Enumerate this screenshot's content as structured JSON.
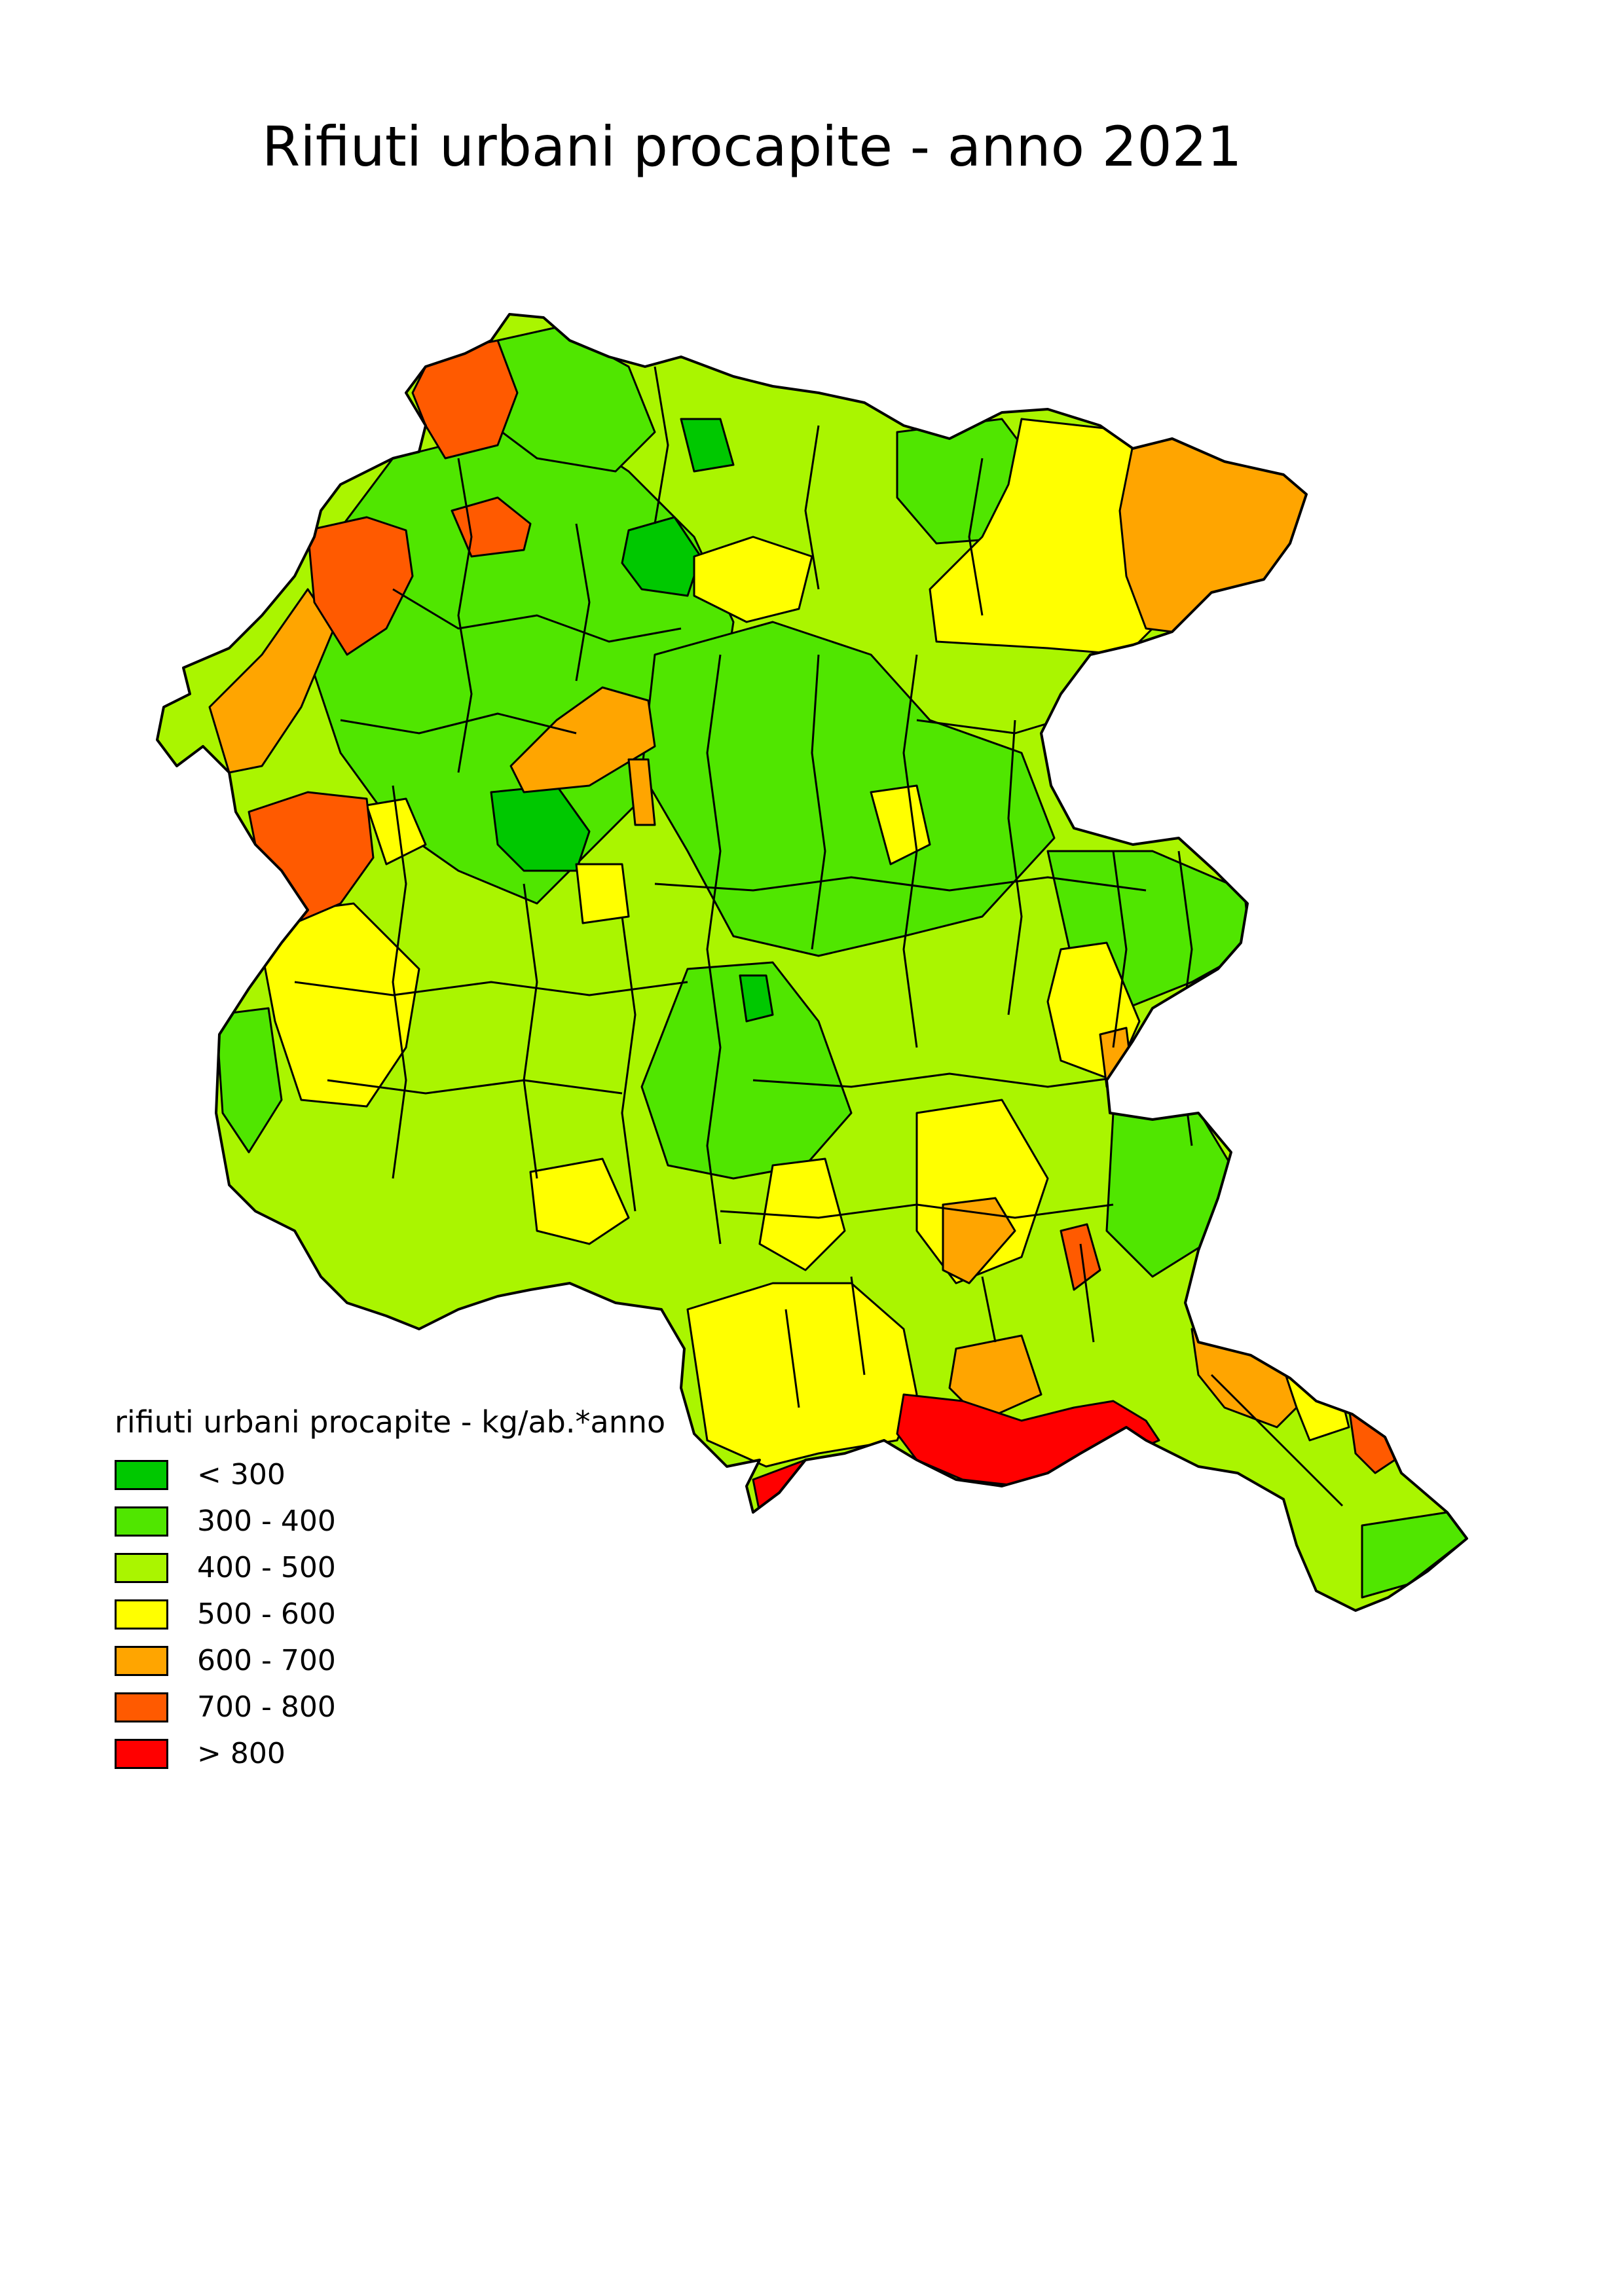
{
  "title": "Rifiuti urbani procapite - anno 2021",
  "legend": {
    "title": "rifiuti urbani procapite - kg/ab.*anno",
    "classes": [
      {
        "label": "< 300",
        "color": "#00c800"
      },
      {
        "label": "300 - 400",
        "color": "#50e600"
      },
      {
        "label": "400 - 500",
        "color": "#aaf500"
      },
      {
        "label": "500 - 600",
        "color": "#ffff00"
      },
      {
        "label": "600 - 700",
        "color": "#ffa500"
      },
      {
        "label": "700 - 800",
        "color": "#ff5a00"
      },
      {
        "label": "> 800",
        "color": "#ff0000"
      }
    ]
  }
}
